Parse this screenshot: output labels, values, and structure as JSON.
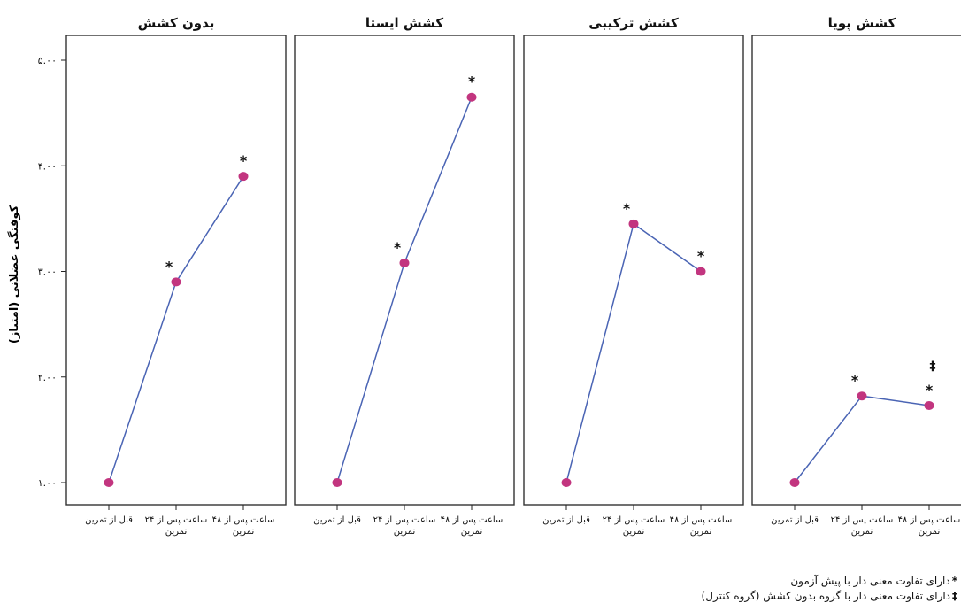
{
  "chart_data": {
    "type": "line",
    "ylabel": "کوفتگی عضلانی (امتیاز)",
    "ylim": [
      1,
      5
    ],
    "yticks": [
      1,
      2,
      3,
      4,
      5
    ],
    "ytick_labels": [
      "۱.۰۰",
      "۲.۰۰",
      "۳.۰۰",
      "۴.۰۰",
      "۵.۰۰"
    ],
    "categories": [
      "قبل از تمرین",
      "۲۴ ساعت پس از تمرین",
      "۴۸ ساعت پس از تمرین"
    ],
    "category_lines": [
      [
        "قبل از تمرین"
      ],
      [
        "۲۴ ساعت پس از",
        "تمرین"
      ],
      [
        "۴۸ ساعت پس از",
        "تمرین"
      ]
    ],
    "line_color": "#4a64b4",
    "marker_color": "#c2357f",
    "panels": [
      {
        "title": "بدون کشش",
        "values": [
          1.0,
          2.9,
          3.9
        ],
        "marks": [
          [],
          [
            "*"
          ],
          [
            "*"
          ]
        ]
      },
      {
        "title": "کشش ایستا",
        "values": [
          1.0,
          3.08,
          4.65
        ],
        "marks": [
          [],
          [
            "*"
          ],
          [
            "*"
          ]
        ]
      },
      {
        "title": "کشش ترکیبی",
        "values": [
          1.0,
          3.45,
          3.0
        ],
        "marks": [
          [],
          [
            "*"
          ],
          [
            "*"
          ]
        ]
      },
      {
        "title": "کشش پویا",
        "values": [
          1.0,
          1.82,
          1.73
        ],
        "marks": [
          [],
          [
            "*"
          ],
          [
            "*",
            "‡"
          ]
        ]
      }
    ]
  },
  "legend": [
    {
      "symbol": "*",
      "text": "دارای تفاوت معنی دار با پیش آزمون"
    },
    {
      "symbol": "‡",
      "text": "دارای تفاوت معنی دار با گروه بدون کشش (گروه کنترل)"
    }
  ]
}
